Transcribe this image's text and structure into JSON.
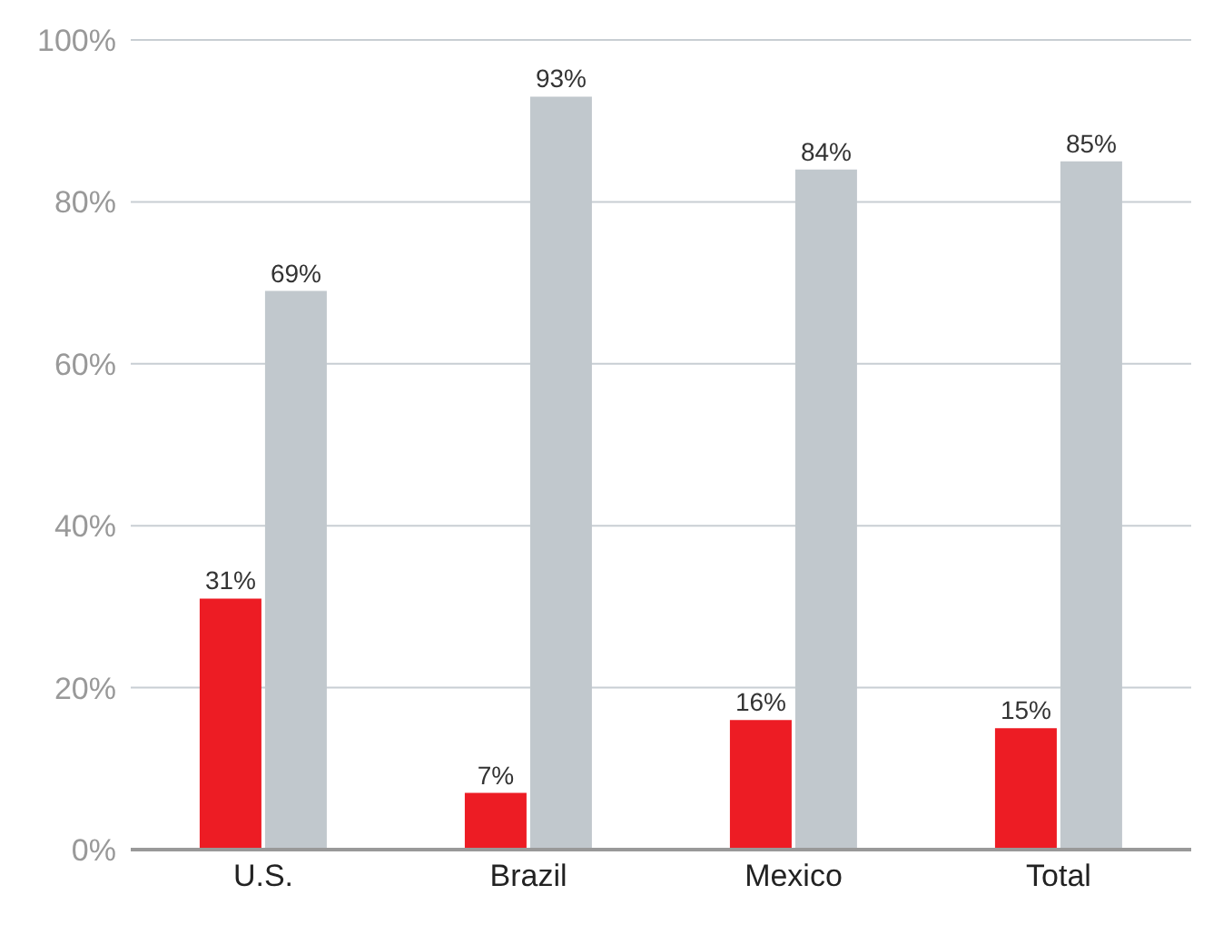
{
  "chart_data": {
    "type": "bar",
    "categories": [
      "U.S.",
      "Brazil",
      "Mexico",
      "Total"
    ],
    "series": [
      {
        "color": "#ed1c24",
        "values": [
          31,
          7,
          16,
          15
        ],
        "value_labels": [
          "31%",
          "7%",
          "16%",
          "15%"
        ]
      },
      {
        "color": "#c1c8cd",
        "values": [
          69,
          93,
          84,
          85
        ],
        "value_labels": [
          "69%",
          "93%",
          "84%",
          "85%"
        ]
      }
    ],
    "ylim": [
      0,
      100
    ],
    "yticks": [
      {
        "value": 0,
        "label": "0%"
      },
      {
        "value": 20,
        "label": "20%"
      },
      {
        "value": 40,
        "label": "40%"
      },
      {
        "value": 60,
        "label": "60%"
      },
      {
        "value": 80,
        "label": "80%"
      },
      {
        "value": 100,
        "label": "100%"
      }
    ],
    "grid": "y"
  }
}
